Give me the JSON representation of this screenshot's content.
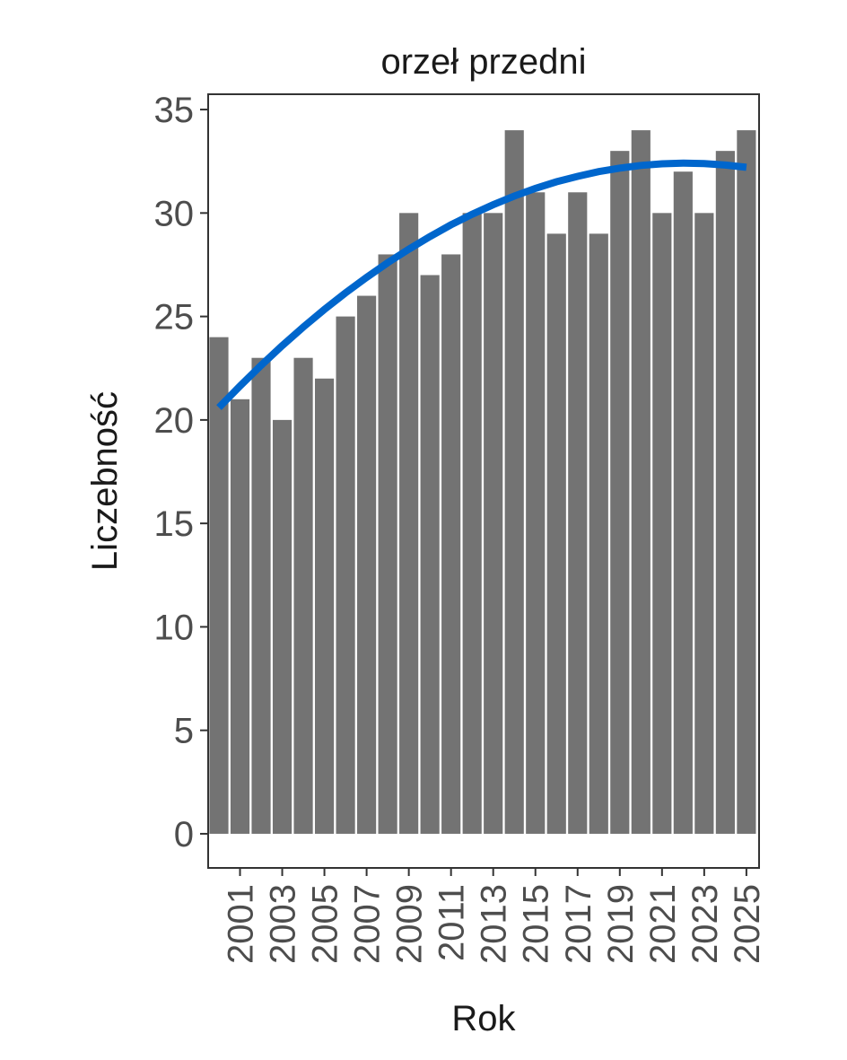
{
  "chart_data": {
    "type": "bar",
    "title": "orzeł przedni",
    "x_label": "Rok",
    "y_label": "Liczebność",
    "x": [
      2000,
      2001,
      2002,
      2003,
      2004,
      2005,
      2006,
      2007,
      2008,
      2009,
      2010,
      2011,
      2012,
      2013,
      2014,
      2015,
      2016,
      2017,
      2018,
      2019,
      2020,
      2021,
      2022,
      2023,
      2024,
      2025
    ],
    "values": [
      24,
      21,
      23,
      20,
      23,
      22,
      25,
      26,
      28,
      30,
      27,
      28,
      30,
      30,
      34,
      31,
      29,
      31,
      29,
      33,
      34,
      30,
      32,
      30,
      33,
      34
    ],
    "color": "#737373",
    "trend": {
      "color": "#0066cc",
      "values": [
        20.6,
        21.64,
        22.64,
        23.59,
        24.49,
        25.34,
        26.14,
        26.89,
        27.6,
        28.25,
        28.86,
        29.43,
        29.94,
        30.4,
        30.82,
        31.19,
        31.51,
        31.77,
        32.0,
        32.17,
        32.3,
        32.38,
        32.41,
        32.39,
        32.32,
        32.21
      ]
    },
    "xlim": [
      1999.49,
      2025.6
    ],
    "xticks": [
      2001,
      2003,
      2005,
      2007,
      2009,
      2011,
      2013,
      2015,
      2017,
      2019,
      2021,
      2023,
      2025
    ],
    "ylim": [
      -1.65,
      35.74
    ],
    "yticks": [
      0,
      5,
      10,
      15,
      20,
      25,
      30,
      35
    ]
  }
}
